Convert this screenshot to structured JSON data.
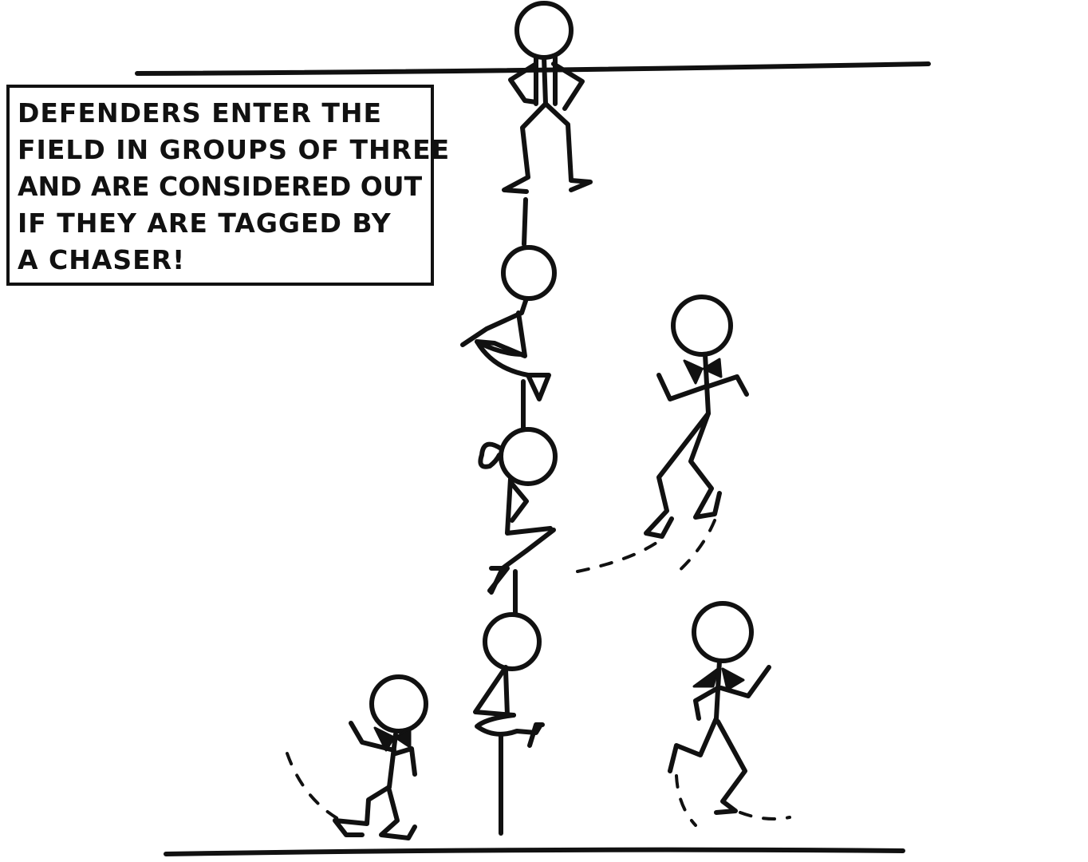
{
  "caption": {
    "lines": [
      "DEFENDERS ENTER THE",
      "FIELD IN GROUPS OF THREE",
      "AND ARE CONSIDERED OUT",
      "IF THEY ARE TAGGED BY",
      "A CHASER!"
    ]
  },
  "colors": {
    "ink": "#111111",
    "paper": "#ffffff"
  },
  "figures": {
    "center_column": "stacked-stick-figures",
    "defenders": [
      "defender-left",
      "defender-upper-right",
      "defender-lower-right"
    ]
  }
}
